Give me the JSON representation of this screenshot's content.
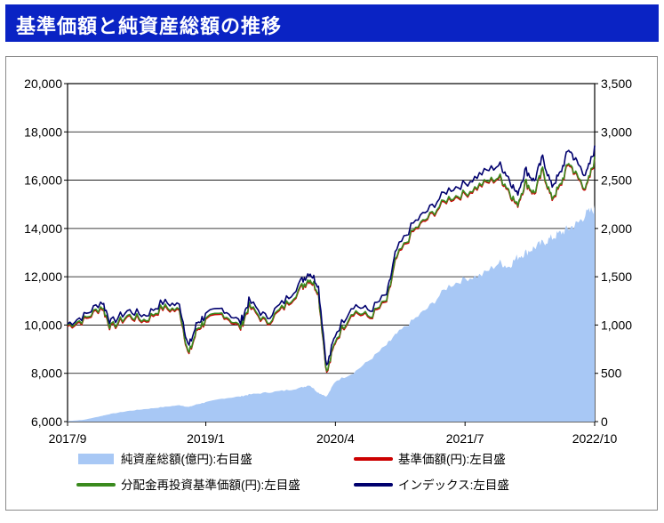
{
  "title": "基準価額と純資産総額の推移",
  "chart_data": {
    "type": "line",
    "title": "基準価額と純資産総額の推移",
    "x_tick_labels": [
      "2017/9",
      "2019/1",
      "2020/4",
      "2021/7",
      "2022/10"
    ],
    "left_axis": {
      "ticks": [
        "6,000",
        "8,000",
        "10,000",
        "12,000",
        "14,000",
        "16,000",
        "18,000",
        "20,000"
      ],
      "ylim": [
        6000,
        20000
      ]
    },
    "right_axis": {
      "ticks": [
        "0",
        "500",
        "1,000",
        "1,500",
        "2,000",
        "2,500",
        "3,000",
        "3,500"
      ],
      "ylim": [
        0,
        3500
      ]
    },
    "grid": "horizontal",
    "legend_position": "bottom",
    "x_dates": [
      "2017-09",
      "2017-11",
      "2018-01",
      "2018-02",
      "2018-04",
      "2018-06",
      "2018-08",
      "2018-10",
      "2018-11",
      "2018-12",
      "2019-01",
      "2019-03",
      "2019-05",
      "2019-06",
      "2019-08",
      "2019-10",
      "2019-12",
      "2020-01",
      "2020-02",
      "2020-03",
      "2020-04",
      "2020-06",
      "2020-08",
      "2020-10",
      "2020-11",
      "2021-01",
      "2021-03",
      "2021-05",
      "2021-07",
      "2021-09",
      "2021-11",
      "2021-12",
      "2022-01",
      "2022-02",
      "2022-03",
      "2022-04",
      "2022-05",
      "2022-06",
      "2022-07",
      "2022-08",
      "2022-09",
      "2022-10"
    ],
    "series": [
      {
        "name": "純資産総額(億円):右目盛",
        "axis": "right",
        "style": "area",
        "color": "#a8c8f5",
        "values": [
          5,
          20,
          60,
          80,
          110,
          130,
          150,
          170,
          150,
          180,
          200,
          240,
          260,
          280,
          300,
          320,
          350,
          380,
          300,
          260,
          420,
          500,
          640,
          800,
          900,
          1050,
          1200,
          1400,
          1480,
          1520,
          1650,
          1600,
          1700,
          1750,
          1800,
          1850,
          1900,
          1950,
          2000,
          2050,
          2150,
          2200
        ]
      },
      {
        "name": "基準価額(円):左目盛",
        "axis": "left",
        "color": "#cc0000",
        "values": [
          9950,
          10200,
          10750,
          9850,
          10350,
          10150,
          10700,
          10550,
          8700,
          9800,
          10150,
          10450,
          9850,
          10750,
          10050,
          10700,
          11500,
          11900,
          11400,
          7950,
          9350,
          10550,
          10300,
          11000,
          12700,
          13850,
          14500,
          15200,
          15400,
          15800,
          16100,
          15600,
          14900,
          15900,
          15400,
          16400,
          15200,
          15700,
          16700,
          16100,
          15600,
          16800
        ]
      },
      {
        "name": "分配金再投資基準価額(円):左目盛",
        "axis": "left",
        "color": "#3a8a1e",
        "values": [
          10000,
          10250,
          10800,
          9900,
          10400,
          10200,
          10750,
          10600,
          8750,
          9850,
          10200,
          10500,
          9900,
          10800,
          10100,
          10750,
          11550,
          11950,
          11450,
          8000,
          9400,
          10600,
          10350,
          11050,
          12750,
          13900,
          14550,
          15250,
          15450,
          15850,
          16150,
          15650,
          14950,
          15950,
          15450,
          16450,
          15250,
          15750,
          16750,
          16150,
          15650,
          16850
        ]
      },
      {
        "name": "インデックス:左目盛",
        "axis": "left",
        "color": "#00006e",
        "values": [
          10050,
          10400,
          11000,
          10100,
          10600,
          10400,
          10950,
          10800,
          9050,
          10100,
          10400,
          10700,
          10100,
          11000,
          10300,
          10950,
          11800,
          12200,
          11700,
          8250,
          9650,
          10850,
          10600,
          11300,
          13050,
          14200,
          14850,
          15600,
          15850,
          16300,
          16650,
          16150,
          15400,
          16450,
          15950,
          16950,
          15750,
          16250,
          17300,
          16700,
          16200,
          17300
        ]
      }
    ]
  }
}
